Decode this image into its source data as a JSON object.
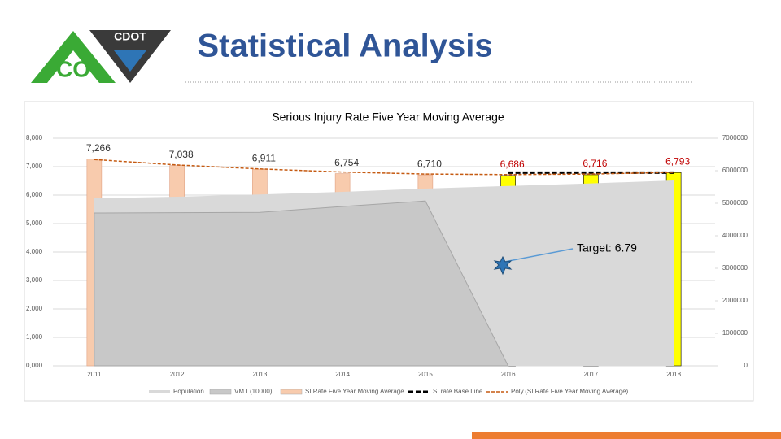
{
  "header": {
    "title": "Statistical Analysis",
    "logo_top": "CDOT",
    "logo_bottom": "CO"
  },
  "chart_data": {
    "type": "combo",
    "title": "Serious Injury Rate Five Year Moving Average",
    "categories": [
      "2011",
      "2012",
      "2013",
      "2014",
      "2015",
      "2016",
      "2017",
      "2018"
    ],
    "ylim": [
      0,
      8
    ],
    "yticks": [
      {
        "value": 0,
        "label": "0,000"
      },
      {
        "value": 1,
        "label": "1,000"
      },
      {
        "value": 2,
        "label": "2,000"
      },
      {
        "value": 3,
        "label": "3,000"
      },
      {
        "value": 4,
        "label": "4,000"
      },
      {
        "value": 5,
        "label": "5,000"
      },
      {
        "value": 6,
        "label": "6,000"
      },
      {
        "value": 7,
        "label": "7,000"
      },
      {
        "value": 8,
        "label": "8,000"
      }
    ],
    "y2lim": [
      0,
      7000000
    ],
    "y2ticks": [
      0,
      1000000,
      2000000,
      3000000,
      4000000,
      5000000,
      6000000,
      7000000
    ],
    "series": [
      {
        "name": "Population",
        "type": "area",
        "axis": "y2",
        "color": "#d9d9d9",
        "values": [
          5150000,
          5200000,
          5270000,
          5350000,
          5450000,
          5530000,
          5610000,
          5700000
        ]
      },
      {
        "name": "VMT (10000)",
        "type": "area",
        "axis": "y2",
        "color": "#c8c8c8",
        "values": [
          4700000,
          4710000,
          4720000,
          4900000,
          5070000,
          0,
          null,
          null
        ]
      },
      {
        "name": "SI Rate Five Year Moving Average",
        "type": "bar",
        "color": "#f8cbad",
        "colors": [
          "#f8cbad",
          "#f8cbad",
          "#f8cbad",
          "#f8cbad",
          "#f8cbad",
          "#ffff00",
          "#ffff00",
          "#ffff00"
        ],
        "values": [
          7.266,
          7.038,
          6.911,
          6.754,
          6.71,
          6.686,
          6.716,
          6.793
        ],
        "value_labels": [
          "7,266",
          "7,038",
          "6,911",
          "6,754",
          "6,710",
          "6,686",
          "6,716",
          "6,793"
        ],
        "label_colors": [
          "#333333",
          "#333333",
          "#333333",
          "#333333",
          "#333333",
          "#c00000",
          "#c00000",
          "#c00000"
        ]
      },
      {
        "name": "SI rate Base Line",
        "type": "line",
        "color": "#000000",
        "values": [
          null,
          null,
          null,
          null,
          null,
          6.79,
          6.79,
          6.79
        ]
      },
      {
        "name": "Poly.(SI Rate Five Year Moving Average)",
        "type": "line",
        "color": "#c55a11",
        "values": [
          7.25,
          7.06,
          6.92,
          6.81,
          6.74,
          6.72,
          6.74,
          6.8
        ]
      }
    ],
    "annotation": "Target: 6.79"
  }
}
